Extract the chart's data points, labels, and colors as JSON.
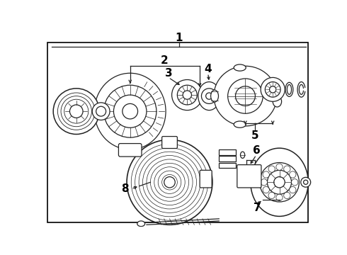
{
  "bg_color": "#ffffff",
  "line_color": "#222222",
  "lw": 0.9,
  "fig_w": 4.9,
  "fig_h": 3.6,
  "dpi": 100
}
